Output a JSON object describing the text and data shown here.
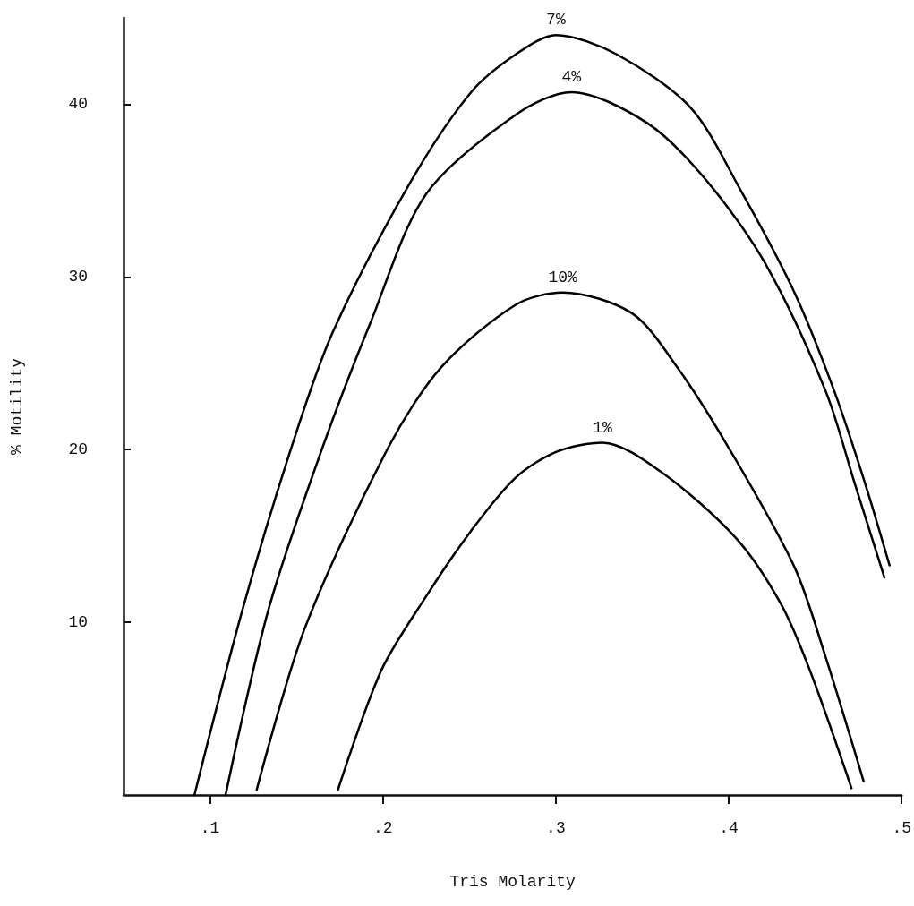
{
  "chart_data": {
    "type": "line",
    "xlabel": "Tris Molarity",
    "ylabel": "% Motility",
    "xlim": [
      0.05,
      0.5
    ],
    "xticks": [
      {
        "value": 0.1,
        "label": ".1"
      },
      {
        "value": 0.2,
        "label": ".2"
      },
      {
        "value": 0.3,
        "label": ".3"
      },
      {
        "value": 0.4,
        "label": ".4"
      },
      {
        "value": 0.5,
        "label": ".5"
      }
    ],
    "ylim": [
      0,
      45
    ],
    "yticks": [
      10,
      20,
      30,
      40
    ],
    "grid": false,
    "legend": false,
    "marker": "none",
    "line_style": "solid",
    "series": [
      {
        "name": "7%",
        "color": "#000000",
        "x": [
          0.091,
          0.119,
          0.147,
          0.171,
          0.216,
          0.251,
          0.277,
          0.3,
          0.335,
          0.378,
          0.407,
          0.438,
          0.461,
          0.479,
          0.493
        ],
        "values": [
          0,
          10.8,
          20.1,
          26.8,
          35.5,
          40.7,
          42.9,
          44,
          42.9,
          39.8,
          35,
          29.1,
          23.4,
          18,
          13.3
        ]
      },
      {
        "name": "4%",
        "color": "#000000",
        "x": [
          0.109,
          0.134,
          0.165,
          0.193,
          0.225,
          0.277,
          0.309,
          0.353,
          0.387,
          0.421,
          0.456,
          0.473,
          0.49
        ],
        "values": [
          0,
          10.8,
          20.1,
          27.4,
          34.8,
          39.4,
          40.7,
          38.9,
          35.6,
          30.8,
          23.4,
          18,
          12.6
        ]
      },
      {
        "name": "10%",
        "color": "#000000",
        "x": [
          0.127,
          0.155,
          0.203,
          0.234,
          0.277,
          0.304,
          0.344,
          0.37,
          0.4,
          0.438,
          0.456,
          0.478
        ],
        "values": [
          0.3,
          9.7,
          20.1,
          24.8,
          28.4,
          29.1,
          27.9,
          24.8,
          20.1,
          13.2,
          8,
          0.8
        ]
      },
      {
        "name": "1%",
        "color": "#000000",
        "x": [
          0.174,
          0.199,
          0.225,
          0.251,
          0.277,
          0.301,
          0.327,
          0.361,
          0.404,
          0.43,
          0.447,
          0.471
        ],
        "values": [
          0.3,
          7.2,
          11.5,
          15.3,
          18.4,
          19.9,
          20.4,
          18.7,
          14.9,
          11.1,
          7.2,
          0.4
        ]
      }
    ]
  }
}
